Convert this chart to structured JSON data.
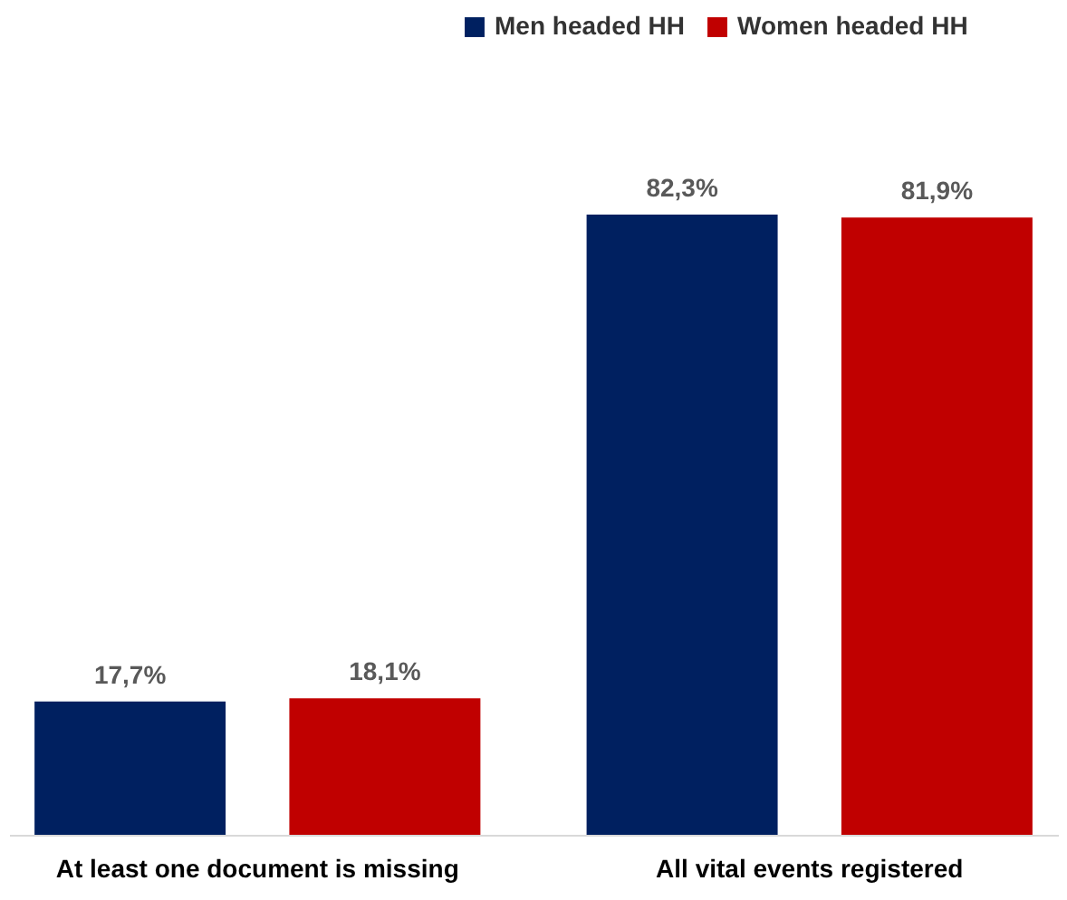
{
  "chart_data": {
    "type": "bar",
    "categories": [
      "At least one document is missing",
      "All vital events  registered"
    ],
    "series": [
      {
        "name": "Men headed HH",
        "color": "#002060",
        "values": [
          17.7,
          82.3
        ],
        "value_labels": [
          "17,7%",
          "82,3%"
        ]
      },
      {
        "name": "Women headed HH",
        "color": "#c00000",
        "values": [
          18.1,
          81.9
        ],
        "value_labels": [
          "18,1%",
          "81,9%"
        ]
      }
    ],
    "legend": "top right",
    "grid": false
  }
}
